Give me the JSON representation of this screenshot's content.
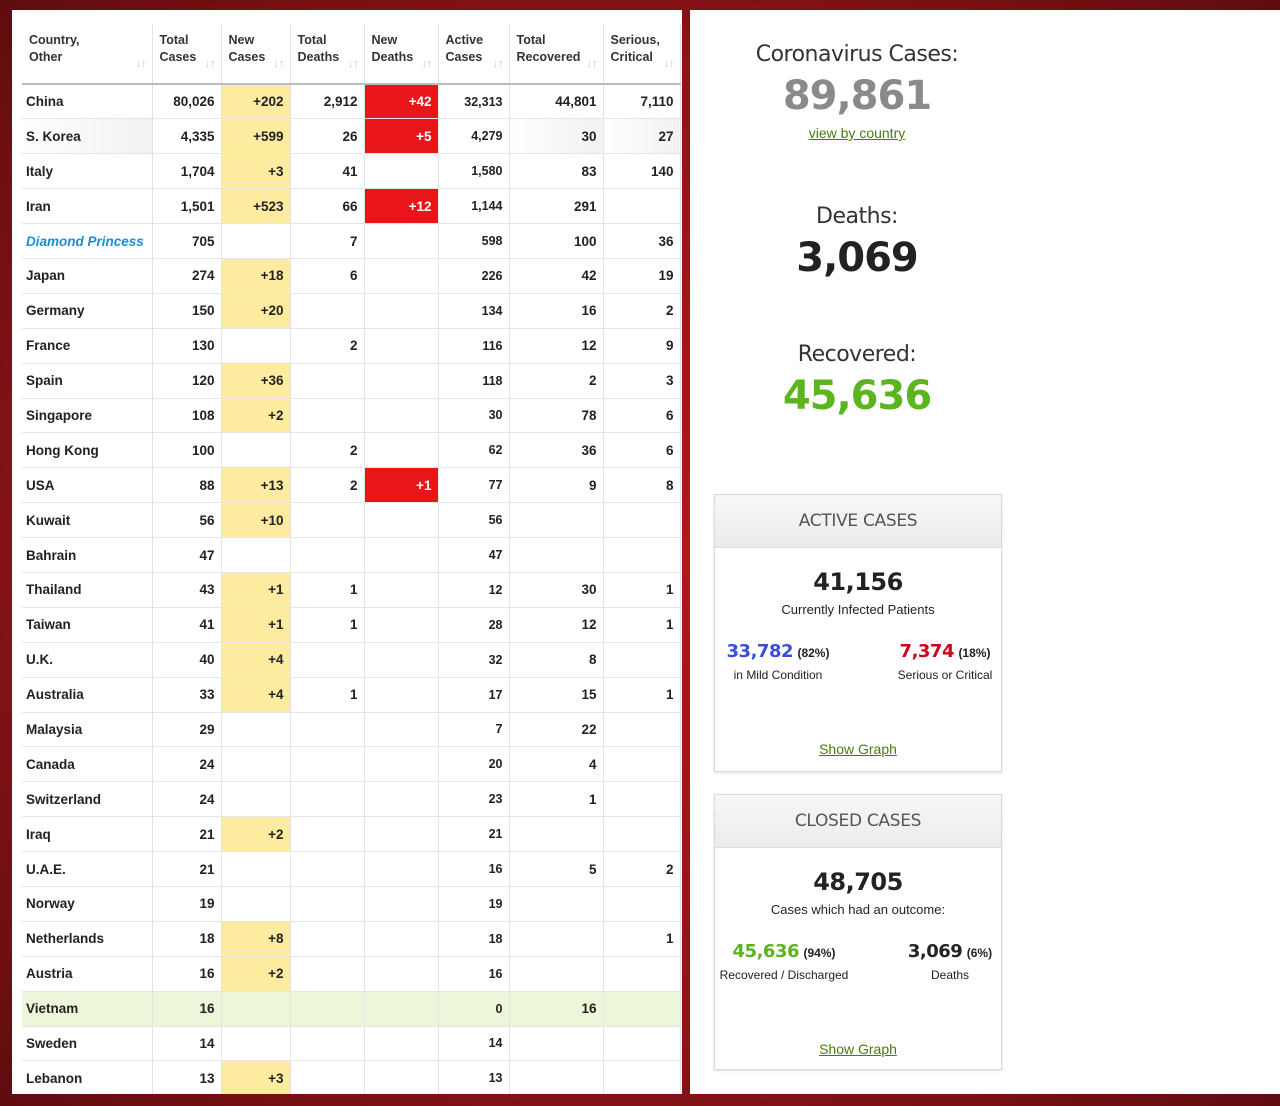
{
  "table": {
    "headers": [
      {
        "label": "Country,\nOther"
      },
      {
        "label": "Total\nCases"
      },
      {
        "label": "New\nCases"
      },
      {
        "label": "Total\nDeaths"
      },
      {
        "label": "New\nDeaths"
      },
      {
        "label": "Active\nCases"
      },
      {
        "label": "Total\nRecovered"
      },
      {
        "label": "Serious,\nCritical"
      }
    ],
    "sort_icon": "↓↑",
    "rows": [
      {
        "country": "China",
        "total": "80,026",
        "new": "+202",
        "deaths": "2,912",
        "new_deaths": "+42",
        "active": "32,313",
        "recovered": "44,801",
        "serious": "7,110"
      },
      {
        "country": "S. Korea",
        "total": "4,335",
        "new": "+599",
        "deaths": "26",
        "new_deaths": "+5",
        "active": "4,279",
        "recovered": "30",
        "serious": "27"
      },
      {
        "country": "Italy",
        "total": "1,704",
        "new": "+3",
        "deaths": "41",
        "new_deaths": "",
        "active": "1,580",
        "recovered": "83",
        "serious": "140"
      },
      {
        "country": "Iran",
        "total": "1,501",
        "new": "+523",
        "deaths": "66",
        "new_deaths": "+12",
        "active": "1,144",
        "recovered": "291",
        "serious": ""
      },
      {
        "country": "Diamond Princess",
        "total": "705",
        "new": "",
        "deaths": "7",
        "new_deaths": "",
        "active": "598",
        "recovered": "100",
        "serious": "36"
      },
      {
        "country": "Japan",
        "total": "274",
        "new": "+18",
        "deaths": "6",
        "new_deaths": "",
        "active": "226",
        "recovered": "42",
        "serious": "19"
      },
      {
        "country": "Germany",
        "total": "150",
        "new": "+20",
        "deaths": "",
        "new_deaths": "",
        "active": "134",
        "recovered": "16",
        "serious": "2"
      },
      {
        "country": "France",
        "total": "130",
        "new": "",
        "deaths": "2",
        "new_deaths": "",
        "active": "116",
        "recovered": "12",
        "serious": "9"
      },
      {
        "country": "Spain",
        "total": "120",
        "new": "+36",
        "deaths": "",
        "new_deaths": "",
        "active": "118",
        "recovered": "2",
        "serious": "3"
      },
      {
        "country": "Singapore",
        "total": "108",
        "new": "+2",
        "deaths": "",
        "new_deaths": "",
        "active": "30",
        "recovered": "78",
        "serious": "6"
      },
      {
        "country": "Hong Kong",
        "total": "100",
        "new": "",
        "deaths": "2",
        "new_deaths": "",
        "active": "62",
        "recovered": "36",
        "serious": "6"
      },
      {
        "country": "USA",
        "total": "88",
        "new": "+13",
        "deaths": "2",
        "new_deaths": "+1",
        "active": "77",
        "recovered": "9",
        "serious": "8"
      },
      {
        "country": "Kuwait",
        "total": "56",
        "new": "+10",
        "deaths": "",
        "new_deaths": "",
        "active": "56",
        "recovered": "",
        "serious": ""
      },
      {
        "country": "Bahrain",
        "total": "47",
        "new": "",
        "deaths": "",
        "new_deaths": "",
        "active": "47",
        "recovered": "",
        "serious": ""
      },
      {
        "country": "Thailand",
        "total": "43",
        "new": "+1",
        "deaths": "1",
        "new_deaths": "",
        "active": "12",
        "recovered": "30",
        "serious": "1"
      },
      {
        "country": "Taiwan",
        "total": "41",
        "new": "+1",
        "deaths": "1",
        "new_deaths": "",
        "active": "28",
        "recovered": "12",
        "serious": "1"
      },
      {
        "country": "U.K.",
        "total": "40",
        "new": "+4",
        "deaths": "",
        "new_deaths": "",
        "active": "32",
        "recovered": "8",
        "serious": ""
      },
      {
        "country": "Australia",
        "total": "33",
        "new": "+4",
        "deaths": "1",
        "new_deaths": "",
        "active": "17",
        "recovered": "15",
        "serious": "1"
      },
      {
        "country": "Malaysia",
        "total": "29",
        "new": "",
        "deaths": "",
        "new_deaths": "",
        "active": "7",
        "recovered": "22",
        "serious": ""
      },
      {
        "country": "Canada",
        "total": "24",
        "new": "",
        "deaths": "",
        "new_deaths": "",
        "active": "20",
        "recovered": "4",
        "serious": ""
      },
      {
        "country": "Switzerland",
        "total": "24",
        "new": "",
        "deaths": "",
        "new_deaths": "",
        "active": "23",
        "recovered": "1",
        "serious": ""
      },
      {
        "country": "Iraq",
        "total": "21",
        "new": "+2",
        "deaths": "",
        "new_deaths": "",
        "active": "21",
        "recovered": "",
        "serious": ""
      },
      {
        "country": "U.A.E.",
        "total": "21",
        "new": "",
        "deaths": "",
        "new_deaths": "",
        "active": "16",
        "recovered": "5",
        "serious": "2"
      },
      {
        "country": "Norway",
        "total": "19",
        "new": "",
        "deaths": "",
        "new_deaths": "",
        "active": "19",
        "recovered": "",
        "serious": ""
      },
      {
        "country": "Netherlands",
        "total": "18",
        "new": "+8",
        "deaths": "",
        "new_deaths": "",
        "active": "18",
        "recovered": "",
        "serious": "1"
      },
      {
        "country": "Austria",
        "total": "16",
        "new": "+2",
        "deaths": "",
        "new_deaths": "",
        "active": "16",
        "recovered": "",
        "serious": ""
      },
      {
        "country": "Vietnam",
        "total": "16",
        "new": "",
        "deaths": "",
        "new_deaths": "",
        "active": "0",
        "recovered": "16",
        "serious": ""
      },
      {
        "country": "Sweden",
        "total": "14",
        "new": "",
        "deaths": "",
        "new_deaths": "",
        "active": "14",
        "recovered": "",
        "serious": ""
      },
      {
        "country": "Lebanon",
        "total": "13",
        "new": "+3",
        "deaths": "",
        "new_deaths": "",
        "active": "13",
        "recovered": "",
        "serious": ""
      }
    ]
  },
  "summary": {
    "cases_title": "Coronavirus Cases:",
    "cases_value": "89,861",
    "view_by_country": "view by country",
    "deaths_title": "Deaths:",
    "deaths_value": "3,069",
    "recovered_title": "Recovered:",
    "recovered_value": "45,636"
  },
  "active_cases": {
    "header": "ACTIVE CASES",
    "total": "41,156",
    "total_label": "Currently Infected Patients",
    "mild_value": "33,782",
    "mild_pct": "(82%)",
    "mild_label": "in Mild Condition",
    "serious_value": "7,374",
    "serious_pct": "(18%)",
    "serious_label": "Serious or Critical",
    "show_graph": "Show Graph"
  },
  "closed_cases": {
    "header": "CLOSED CASES",
    "total": "48,705",
    "total_label": "Cases which had an outcome:",
    "recovered_value": "45,636",
    "recovered_pct": "(94%)",
    "recovered_label": "Recovered / Discharged",
    "deaths_value": "3,069",
    "deaths_pct": "(6%)",
    "deaths_label": "Deaths",
    "show_graph": "Show Graph"
  },
  "colors": {
    "cases_number": "#8a8a8a",
    "deaths_number": "#222222",
    "recovered_number": "#5cb41e",
    "mild_blue": "#3b4fd6",
    "serious_red": "#d0021b",
    "new_cases_bg": "#fdeba0",
    "new_deaths_bg": "#e8161a",
    "highlight_row_bg": "#ecf7d9",
    "link_country": "#1a8ed4"
  }
}
